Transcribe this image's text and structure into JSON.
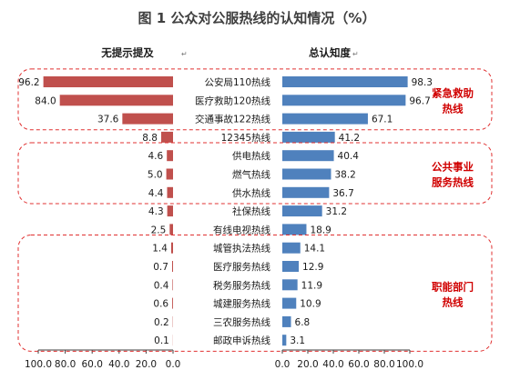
{
  "chart_data": {
    "type": "bar",
    "title": "图 1  公众对公服热线的认知情况（%）",
    "unaided_label": "无提示提及",
    "total_label": "总认知度",
    "categories": [
      "公安局110热线",
      "医疗救助120热线",
      "交通事故122热线",
      "12345热线",
      "供电热线",
      "燃气热线",
      "供水热线",
      "社保热线",
      "有线电视热线",
      "城管执法热线",
      "医疗服务热线",
      "税务服务热线",
      "城建服务热线",
      "三农服务热线",
      "邮政申诉热线"
    ],
    "series": [
      {
        "name": "无提示提及",
        "values": [
          96.2,
          84.0,
          37.6,
          8.8,
          4.6,
          5.0,
          4.4,
          4.3,
          2.5,
          1.4,
          0.7,
          0.4,
          0.6,
          0.2,
          0.1
        ]
      },
      {
        "name": "总认知度",
        "values": [
          98.3,
          96.7,
          67.1,
          41.2,
          40.4,
          38.2,
          36.7,
          31.2,
          18.9,
          14.1,
          12.9,
          11.9,
          10.9,
          6.8,
          3.1
        ]
      }
    ],
    "left_ticks": [
      "100.0",
      "80.0",
      "60.0",
      "40.0",
      "20.0",
      "0.0"
    ],
    "right_ticks": [
      "0.0",
      "20.0",
      "40.0",
      "60.0",
      "80.0",
      "100.0"
    ],
    "xlim": [
      0,
      100
    ],
    "groups": [
      {
        "label_line1": "紧急救助",
        "label_line2": "热线",
        "members": [
          0,
          2
        ]
      },
      {
        "label_line1": "公共事业",
        "label_line2": "服务热线",
        "members": [
          4,
          6
        ]
      },
      {
        "label_line1": "职能部门",
        "label_line2": "热线",
        "members": [
          9,
          14
        ]
      }
    ],
    "colors": {
      "unaided": "#c0504d",
      "total": "#4f81bd",
      "group_text": "#d00000",
      "group_box": "#e03030"
    },
    "grid": false,
    "legend": "none"
  }
}
